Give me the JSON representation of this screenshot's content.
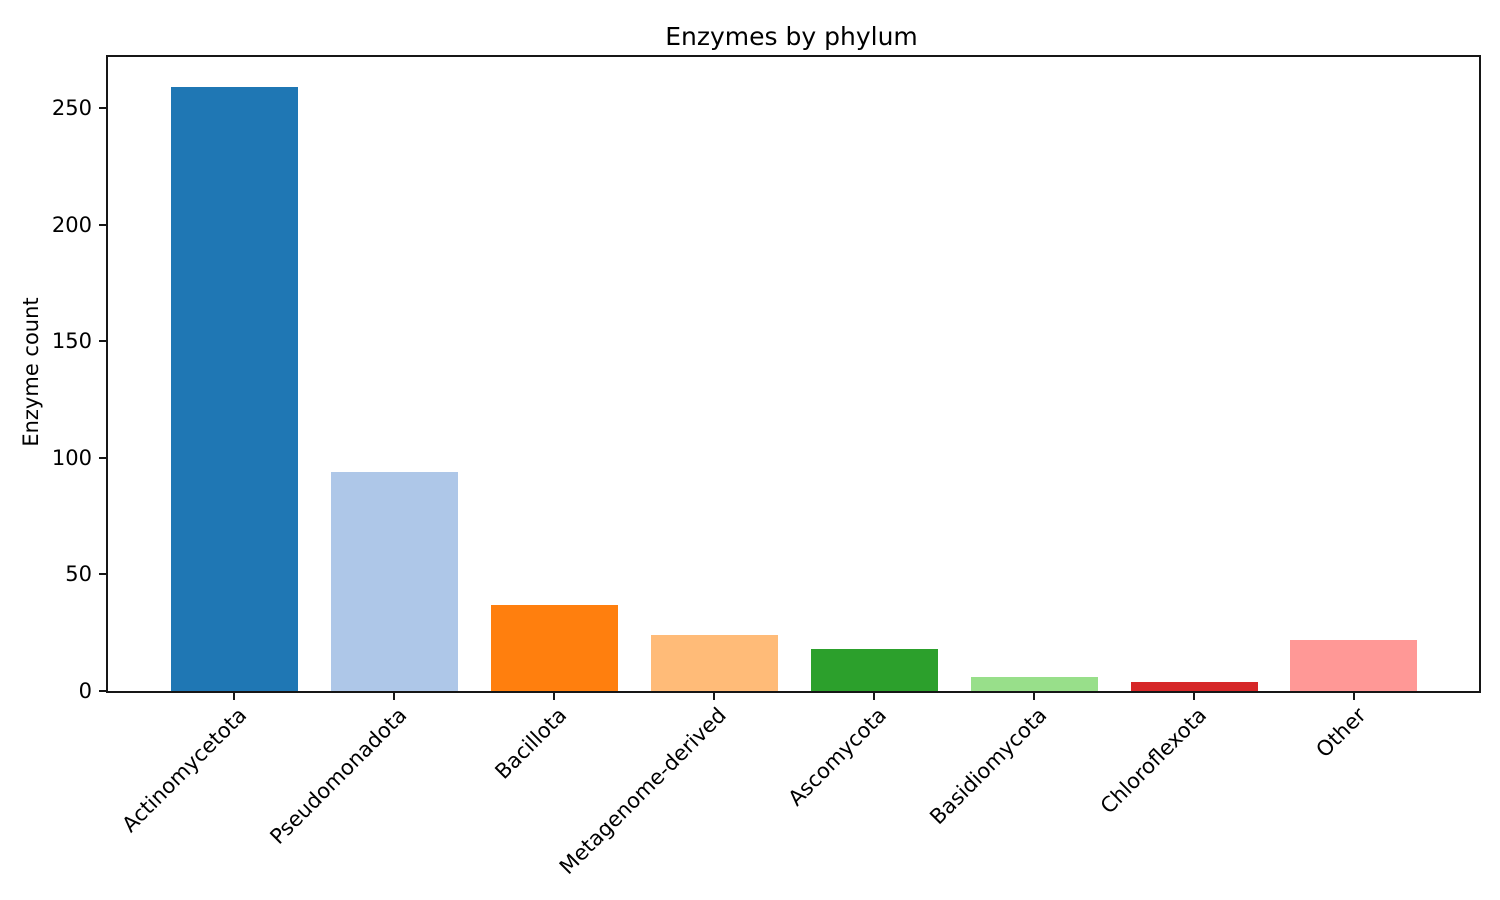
{
  "chart_data": {
    "type": "bar",
    "title": "Enzymes by phylum",
    "xlabel": "",
    "ylabel": "Enzyme count",
    "categories": [
      "Actinomycetota",
      "Pseudomonadota",
      "Bacillota",
      "Metagenome-derived",
      "Ascomycota",
      "Basidiomycota",
      "Chloroflexota",
      "Other"
    ],
    "values": [
      259,
      94,
      37,
      24,
      18,
      6,
      4,
      22
    ],
    "bar_colors": [
      "#1f77b4",
      "#aec7e8",
      "#ff7f0e",
      "#ffbb78",
      "#2ca02c",
      "#98df8a",
      "#d62728",
      "#ff9896"
    ],
    "yticks": [
      0,
      50,
      100,
      150,
      200,
      250
    ],
    "ylim": [
      0,
      272
    ],
    "grid": false,
    "legend_position": "none",
    "background_color": "#ffffff",
    "axis_color": "#161616"
  }
}
